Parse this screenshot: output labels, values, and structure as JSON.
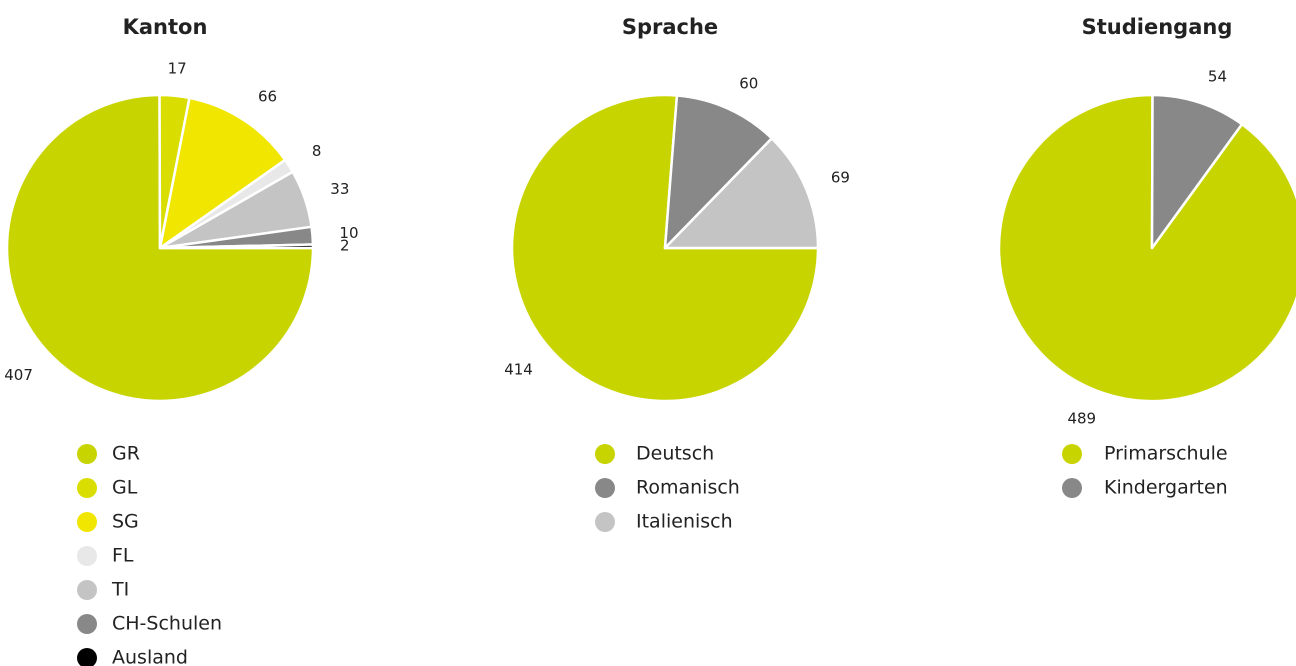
{
  "chart_data": [
    {
      "type": "pie",
      "title": "Kanton",
      "start_angle": 90,
      "categories": [
        "GR",
        "GL",
        "SG",
        "FL",
        "TI",
        "CH-Schulen",
        "Ausland"
      ],
      "values": [
        407,
        17,
        66,
        8,
        33,
        10,
        2
      ],
      "colors": [
        "#c8d400",
        "#d9dd00",
        "#f0e600",
        "#e8e8e8",
        "#c4c4c4",
        "#888888",
        "#000000"
      ]
    },
    {
      "type": "pie",
      "title": "Sprache",
      "start_angle": 90,
      "categories": [
        "Deutsch",
        "Romanisch",
        "Italienisch"
      ],
      "values": [
        414,
        60,
        69
      ],
      "colors": [
        "#c8d400",
        "#888888",
        "#c4c4c4"
      ]
    },
    {
      "type": "pie",
      "title": "Studiengang",
      "start_angle": 36,
      "categories": [
        "Primarschule",
        "Kindergarten"
      ],
      "values": [
        489,
        54
      ],
      "colors": [
        "#c8d400",
        "#888888"
      ]
    }
  ]
}
